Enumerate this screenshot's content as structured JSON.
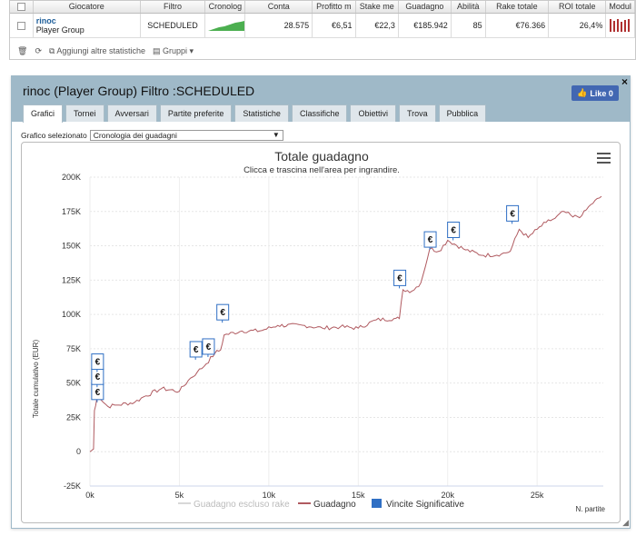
{
  "table": {
    "headers": [
      "Giocatore",
      "Filtro",
      "Cronolog",
      "Conta",
      "Profitto m",
      "Stake me",
      "Guadagno",
      "Abilità",
      "Rake totale",
      "ROI totale",
      "Modul"
    ],
    "row": {
      "player_name": "rinoc",
      "player_sub": "Player Group",
      "filtro": "SCHEDULED",
      "conta": "28.575",
      "profitto": "€6,51",
      "stake": "€22,3",
      "guadagno": "€185.942",
      "abilita": "85",
      "rake": "€76.366",
      "roi": "26,4%"
    }
  },
  "toolbar": {
    "add_stats": "Aggiungi altre statistiche",
    "groups": "Gruppi"
  },
  "panel": {
    "title": "rinoc (Player Group) Filtro :SCHEDULED",
    "like_label": "Like 0",
    "close": "×",
    "tabs": [
      "Grafici",
      "Tornei",
      "Avversari",
      "Partite preferite",
      "Statistiche",
      "Classifiche",
      "Obiettivi",
      "Trova",
      "Pubblica"
    ],
    "select_label": "Grafico selezionato",
    "select_value": "Cronologia dei guadagni"
  },
  "chart_data": {
    "type": "line",
    "title": "Totale guadagno",
    "subtitle": "Clicca e trascina nell'area per ingrandire.",
    "ylabel": "Totale cumulativo (EUR)",
    "xlabel": "N. partite",
    "ylim": [
      -25000,
      200000
    ],
    "xlim": [
      0,
      28700
    ],
    "yticks": [
      "-25K",
      "0",
      "25K",
      "50K",
      "75K",
      "100K",
      "125K",
      "150K",
      "175K",
      "200K"
    ],
    "xticks": [
      "0k",
      "5k",
      "10k",
      "15k",
      "20k",
      "25k"
    ],
    "grid": true,
    "legend_position": "bottom",
    "legend": [
      "Guadagno escluso rake",
      "Guadagno",
      "Vincite Significative"
    ],
    "colors": {
      "guadagno": "#b05a60",
      "rake_excluded": "#d8d8d8",
      "significant": "#2f6fc4"
    },
    "series": [
      {
        "name": "Guadagno",
        "x": [
          0,
          200,
          250,
          400,
          600,
          1000,
          1500,
          2500,
          3000,
          4000,
          5000,
          5500,
          6000,
          6500,
          7000,
          7300,
          7500,
          8500,
          9500,
          10500,
          12000,
          13000,
          14000,
          15000,
          16000,
          17000,
          17300,
          17500,
          18000,
          18500,
          19000,
          19500,
          20000,
          21000,
          22000,
          23000,
          23500,
          24000,
          24500,
          25000,
          25500,
          26000,
          26500,
          27000,
          27500,
          28000,
          28600
        ],
        "y": [
          0,
          2000,
          30000,
          40000,
          38000,
          33000,
          34000,
          36000,
          40000,
          46000,
          44000,
          52000,
          58000,
          64000,
          72000,
          74000,
          85000,
          88000,
          88000,
          92000,
          92000,
          90000,
          91000,
          90000,
          96000,
          97000,
          97000,
          118000,
          117000,
          123000,
          148000,
          146000,
          154000,
          147000,
          143000,
          144000,
          146000,
          162000,
          156000,
          162000,
          167000,
          170000,
          175000,
          171000,
          172000,
          180000,
          186000
        ]
      },
      {
        "name": "Vincite Significative",
        "x": [
          400,
          400,
          400,
          5900,
          6600,
          7400,
          17300,
          19000,
          20300,
          23600
        ],
        "y": [
          36000,
          47000,
          58000,
          67000,
          69000,
          94000,
          119000,
          147000,
          154000,
          166000
        ]
      }
    ]
  }
}
